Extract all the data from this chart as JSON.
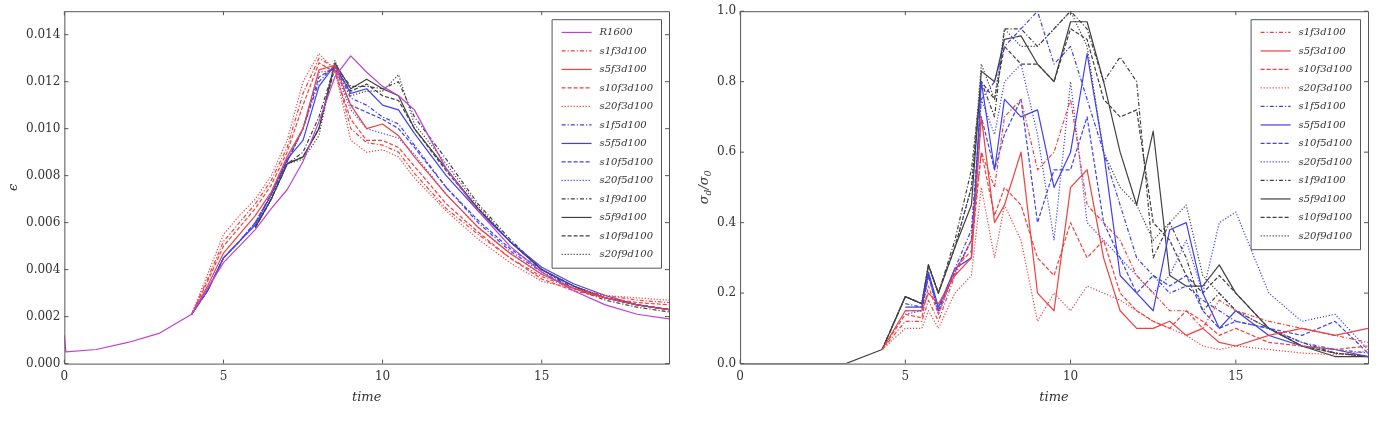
{
  "chart_data": [
    {
      "type": "line",
      "xlabel": "time",
      "ylabel": "ϵ",
      "legend": "top right",
      "grid": false,
      "marker": "none",
      "x": [
        0,
        0.05,
        1,
        2,
        3,
        4,
        4.5,
        5,
        5.5,
        6,
        6.5,
        7,
        7.5,
        8,
        8.5,
        9,
        9.5,
        10,
        10.5,
        11,
        12,
        13,
        14,
        15,
        16,
        17,
        18,
        19
      ],
      "xlim": [
        0,
        19
      ],
      "xticks": [
        0,
        5,
        10,
        15
      ],
      "ylim": [
        0,
        0.015
      ],
      "yticks": [
        {
          "value": 0,
          "label": "0.000"
        },
        {
          "value": 0.002,
          "label": "0.002"
        },
        {
          "value": 0.004,
          "label": "0.004"
        },
        {
          "value": 0.006,
          "label": "0.006"
        },
        {
          "value": 0.008,
          "label": "0.008"
        },
        {
          "value": 0.01,
          "label": "0.010"
        },
        {
          "value": 0.012,
          "label": "0.012"
        },
        {
          "value": 0.014,
          "label": "0.014"
        }
      ],
      "series": [
        {
          "name": "R1600",
          "color": "#c040d0",
          "line_style": "solid",
          "values": [
            0.0012,
            0.0005,
            0.0006,
            0.0009,
            0.0013,
            0.0021,
            0.0032,
            0.0043,
            0.005,
            0.0057,
            0.0066,
            0.0074,
            0.0086,
            0.0103,
            0.0122,
            0.0131,
            0.0124,
            0.0118,
            0.0114,
            0.0108,
            0.0083,
            0.0065,
            0.005,
            0.0039,
            0.0031,
            0.0025,
            0.0021,
            0.0019
          ]
        },
        {
          "name": "s1f3d100",
          "color": "#f04040",
          "line_style": "dashdot",
          "x": [
            4,
            4.5,
            5,
            5.5,
            6,
            6.5,
            7,
            7.5,
            8,
            8.5,
            9,
            9.5,
            10,
            10.5,
            11,
            12,
            13,
            14,
            15,
            16,
            17,
            18,
            19
          ],
          "values": [
            0.0021,
            0.0036,
            0.0052,
            0.006,
            0.0068,
            0.0078,
            0.0092,
            0.0115,
            0.013,
            0.0126,
            0.01,
            0.0094,
            0.0093,
            0.009,
            0.0081,
            0.0066,
            0.0055,
            0.0045,
            0.0037,
            0.0032,
            0.0029,
            0.0027,
            0.0026
          ]
        },
        {
          "name": "s5f3d100",
          "color": "#f04040",
          "line_style": "solid",
          "x": [
            4,
            4.5,
            5,
            5.5,
            6,
            6.5,
            7,
            7.5,
            8,
            8.5,
            9,
            9.5,
            10,
            10.5,
            11,
            12,
            13,
            14,
            15,
            16,
            17,
            18,
            19
          ],
          "values": [
            0.0021,
            0.0033,
            0.0047,
            0.0055,
            0.0063,
            0.0073,
            0.0088,
            0.01,
            0.0125,
            0.0127,
            0.011,
            0.01,
            0.0102,
            0.0097,
            0.0088,
            0.0072,
            0.0058,
            0.0047,
            0.0038,
            0.0032,
            0.0028,
            0.0025,
            0.0023
          ]
        },
        {
          "name": "s10f3d100",
          "color": "#f04040",
          "line_style": "dashed",
          "x": [
            4,
            4.5,
            5,
            5.5,
            6,
            6.5,
            7,
            7.5,
            8,
            8.5,
            9,
            9.5,
            10,
            10.5,
            11,
            12,
            13,
            14,
            15,
            16,
            17,
            18,
            19
          ],
          "values": [
            0.0021,
            0.0035,
            0.005,
            0.0058,
            0.0066,
            0.0076,
            0.009,
            0.011,
            0.0128,
            0.0124,
            0.0104,
            0.0095,
            0.0095,
            0.0092,
            0.0084,
            0.0068,
            0.0056,
            0.0045,
            0.0036,
            0.0031,
            0.0028,
            0.0026,
            0.0025
          ]
        },
        {
          "name": "s20f3d100",
          "color": "#f04040",
          "line_style": "dotted",
          "x": [
            4,
            4.5,
            5,
            5.5,
            6,
            6.5,
            7,
            7.5,
            8,
            8.5,
            9,
            9.5,
            10,
            10.5,
            11,
            12,
            13,
            14,
            15,
            16,
            17,
            18,
            19
          ],
          "values": [
            0.0021,
            0.0038,
            0.0055,
            0.0063,
            0.007,
            0.008,
            0.0095,
            0.012,
            0.0132,
            0.0125,
            0.0095,
            0.009,
            0.0091,
            0.0088,
            0.0079,
            0.0065,
            0.0053,
            0.0043,
            0.0035,
            0.0032,
            0.0029,
            0.0028,
            0.0027
          ]
        },
        {
          "name": "s1f5d100",
          "color": "#4040f0",
          "line_style": "dashdot",
          "x": [
            4,
            4.5,
            5,
            5.5,
            6,
            6.5,
            7,
            7.5,
            8,
            8.5,
            9,
            9.5,
            10,
            10.5,
            11,
            12,
            13,
            14,
            15,
            16,
            17,
            18,
            19
          ],
          "values": [
            0.0021,
            0.0031,
            0.0045,
            0.0052,
            0.006,
            0.0072,
            0.0086,
            0.01,
            0.012,
            0.0127,
            0.0113,
            0.011,
            0.0105,
            0.0102,
            0.0093,
            0.0075,
            0.006,
            0.0048,
            0.0039,
            0.0032,
            0.0028,
            0.0025,
            0.0023
          ]
        },
        {
          "name": "s5f5d100",
          "color": "#4040f0",
          "line_style": "solid",
          "x": [
            4,
            4.5,
            5,
            5.5,
            6,
            6.5,
            7,
            7.5,
            8,
            8.5,
            9,
            9.5,
            10,
            10.5,
            11,
            12,
            13,
            14,
            15,
            16,
            17,
            18,
            19
          ],
          "values": [
            0.0021,
            0.0031,
            0.0045,
            0.0052,
            0.0059,
            0.0072,
            0.0087,
            0.0095,
            0.0118,
            0.0127,
            0.0115,
            0.0117,
            0.011,
            0.0108,
            0.0098,
            0.008,
            0.0065,
            0.0052,
            0.0041,
            0.0034,
            0.0029,
            0.0025,
            0.0023
          ]
        },
        {
          "name": "s10f5d100",
          "color": "#4040f0",
          "line_style": "dashed",
          "x": [
            4,
            4.5,
            5,
            5.5,
            6,
            6.5,
            7,
            7.5,
            8,
            8.5,
            9,
            9.5,
            10,
            10.5,
            11,
            12,
            13,
            14,
            15,
            16,
            17,
            18,
            19
          ],
          "values": [
            0.0021,
            0.0031,
            0.0045,
            0.0052,
            0.006,
            0.0072,
            0.0086,
            0.01,
            0.0122,
            0.0126,
            0.011,
            0.0107,
            0.0104,
            0.01,
            0.0092,
            0.0075,
            0.0061,
            0.0049,
            0.004,
            0.0033,
            0.0028,
            0.0025,
            0.0023
          ]
        },
        {
          "name": "s20f5d100",
          "color": "#4040f0",
          "line_style": "dotted",
          "x": [
            4,
            4.5,
            5,
            5.5,
            6,
            6.5,
            7,
            7.5,
            8,
            8.5,
            9,
            9.5,
            10,
            10.5,
            11,
            12,
            13,
            14,
            15,
            16,
            17,
            18,
            19
          ],
          "values": [
            0.0021,
            0.0031,
            0.0045,
            0.0052,
            0.006,
            0.0072,
            0.0086,
            0.01,
            0.0124,
            0.0125,
            0.0108,
            0.01,
            0.0098,
            0.0096,
            0.0089,
            0.0072,
            0.0058,
            0.0047,
            0.0038,
            0.0032,
            0.0028,
            0.0025,
            0.0023
          ]
        },
        {
          "name": "s1f9d100",
          "color": "#404040",
          "line_style": "dashdot",
          "x": [
            6,
            6.5,
            7,
            7.5,
            8,
            8.5,
            9,
            9.5,
            10,
            10.5,
            11,
            12,
            13,
            14,
            15,
            16,
            17,
            18,
            19
          ],
          "values": [
            0.0058,
            0.007,
            0.0085,
            0.009,
            0.0105,
            0.0127,
            0.0118,
            0.0118,
            0.0117,
            0.012,
            0.0105,
            0.0087,
            0.0068,
            0.0053,
            0.004,
            0.0032,
            0.0027,
            0.0024,
            0.0022
          ]
        },
        {
          "name": "s5f9d100",
          "color": "#404040",
          "line_style": "solid",
          "x": [
            6,
            6.5,
            7,
            7.5,
            8,
            8.5,
            9,
            9.5,
            10,
            10.5,
            11,
            12,
            13,
            14,
            15,
            16,
            17,
            18,
            19
          ],
          "values": [
            0.0058,
            0.007,
            0.0085,
            0.0088,
            0.01,
            0.0128,
            0.0117,
            0.0121,
            0.0117,
            0.0114,
            0.01,
            0.0083,
            0.0066,
            0.0052,
            0.004,
            0.0033,
            0.0028,
            0.0025,
            0.0023
          ]
        },
        {
          "name": "s10f9d100",
          "color": "#404040",
          "line_style": "dashed",
          "x": [
            6,
            6.5,
            7,
            7.5,
            8,
            8.5,
            9,
            9.5,
            10,
            10.5,
            11,
            12,
            13,
            14,
            15,
            16,
            17,
            18,
            19
          ],
          "values": [
            0.0058,
            0.007,
            0.0085,
            0.0088,
            0.01,
            0.0126,
            0.0116,
            0.0119,
            0.0114,
            0.0112,
            0.01,
            0.0082,
            0.0066,
            0.0052,
            0.004,
            0.0033,
            0.0028,
            0.0025,
            0.0023
          ]
        },
        {
          "name": "s20f9d100",
          "color": "#404040",
          "line_style": "dotted",
          "x": [
            6,
            6.5,
            7,
            7.5,
            8,
            8.5,
            9,
            9.5,
            10,
            10.5,
            11,
            12,
            13,
            14,
            15,
            16,
            17,
            18,
            19
          ],
          "values": [
            0.0058,
            0.007,
            0.0085,
            0.0087,
            0.0097,
            0.0129,
            0.0114,
            0.0116,
            0.0116,
            0.0123,
            0.0102,
            0.0085,
            0.0067,
            0.0052,
            0.004,
            0.0033,
            0.0028,
            0.0025,
            0.0023
          ]
        }
      ]
    },
    {
      "type": "line",
      "xlabel": "time",
      "ylabel": "σ$_{d}$/σ$_{0}$",
      "legend": "top right",
      "grid": false,
      "marker": "none",
      "x": [
        4.3,
        5,
        5.5,
        5.7,
        6,
        6.5,
        7,
        7.3,
        7.7,
        8,
        8.5,
        9,
        9.5,
        10,
        10.5,
        11,
        11.5,
        12,
        12.5,
        13,
        13.5,
        14,
        14.5,
        15,
        16,
        17,
        18,
        19
      ],
      "xlim": [
        0,
        19
      ],
      "xticks": [
        0,
        5,
        10,
        15
      ],
      "ylim": [
        0,
        1
      ],
      "yticks": [
        {
          "value": 0,
          "label": "0.0"
        },
        {
          "value": 0.2,
          "label": "0.2"
        },
        {
          "value": 0.4,
          "label": "0.4"
        },
        {
          "value": 0.6,
          "label": "0.6"
        },
        {
          "value": 0.8,
          "label": "0.8"
        },
        {
          "value": 1,
          "label": "1.0"
        }
      ],
      "series": [
        {
          "name": "s1f3d100",
          "color": "#f04040",
          "line_style": "dashdot",
          "values": [
            0.04,
            0.12,
            0.12,
            0.18,
            0.12,
            0.25,
            0.35,
            0.6,
            0.5,
            0.7,
            0.75,
            0.55,
            0.6,
            0.75,
            0.45,
            0.4,
            0.35,
            0.25,
            0.2,
            0.15,
            0.15,
            0.1,
            0.18,
            0.15,
            0.12,
            0.1,
            0.08,
            0.06
          ]
        },
        {
          "name": "s5f3d100",
          "color": "#f04040",
          "line_style": "solid",
          "values": [
            0.04,
            0.15,
            0.15,
            0.2,
            0.17,
            0.25,
            0.3,
            0.7,
            0.4,
            0.45,
            0.6,
            0.2,
            0.15,
            0.5,
            0.55,
            0.3,
            0.15,
            0.1,
            0.1,
            0.12,
            0.08,
            0.1,
            0.06,
            0.05,
            0.08,
            0.1,
            0.08,
            0.1
          ]
        },
        {
          "name": "s10f3d100",
          "color": "#f04040",
          "line_style": "dashed",
          "values": [
            0.04,
            0.14,
            0.13,
            0.22,
            0.14,
            0.27,
            0.32,
            0.6,
            0.42,
            0.5,
            0.45,
            0.3,
            0.25,
            0.4,
            0.3,
            0.35,
            0.2,
            0.15,
            0.12,
            0.1,
            0.15,
            0.12,
            0.08,
            0.1,
            0.06,
            0.05,
            0.04,
            0.05
          ]
        },
        {
          "name": "s20f3d100",
          "color": "#f04040",
          "line_style": "dotted",
          "values": [
            0.04,
            0.1,
            0.1,
            0.15,
            0.1,
            0.2,
            0.25,
            0.5,
            0.3,
            0.45,
            0.35,
            0.12,
            0.2,
            0.15,
            0.22,
            0.2,
            0.18,
            0.15,
            0.12,
            0.1,
            0.08,
            0.05,
            0.04,
            0.05,
            0.04,
            0.03,
            0.025,
            0.035
          ]
        },
        {
          "name": "s1f5d100",
          "color": "#4040f0",
          "line_style": "dashdot",
          "x": [
            5,
            5.5,
            5.7,
            6,
            6.5,
            7,
            7.3,
            7.7,
            8,
            8.5,
            9,
            9.5,
            10,
            10.5,
            11,
            11.5,
            12,
            12.5,
            13,
            13.5,
            14,
            14.5,
            15,
            16,
            17,
            18,
            19
          ],
          "values": [
            0.17,
            0.16,
            0.25,
            0.15,
            0.27,
            0.38,
            0.75,
            0.8,
            0.9,
            0.95,
            1,
            0.85,
            0.9,
            0.75,
            0.6,
            0.45,
            0.3,
            0.25,
            0.2,
            0.22,
            0.18,
            0.15,
            0.12,
            0.1,
            0.06,
            0.04,
            0.03
          ]
        },
        {
          "name": "s5f5d100",
          "color": "#4040f0",
          "line_style": "solid",
          "x": [
            5,
            5.5,
            5.7,
            6,
            6.5,
            7,
            7.3,
            7.7,
            8,
            8.5,
            9,
            9.5,
            10,
            10.5,
            11,
            11.5,
            12,
            12.5,
            13,
            13.5,
            14,
            14.5,
            15,
            16,
            17,
            18,
            19
          ],
          "values": [
            0.16,
            0.16,
            0.26,
            0.16,
            0.27,
            0.3,
            0.8,
            0.55,
            0.75,
            0.7,
            0.72,
            0.5,
            0.6,
            0.88,
            0.6,
            0.25,
            0.2,
            0.15,
            0.38,
            0.4,
            0.2,
            0.1,
            0.15,
            0.08,
            0.05,
            0.04,
            0.02
          ]
        },
        {
          "name": "s10f5d100",
          "color": "#4040f0",
          "line_style": "dashed",
          "x": [
            5,
            5.5,
            5.7,
            6,
            6.5,
            7,
            7.3,
            7.7,
            8,
            8.5,
            9,
            9.5,
            10,
            10.5,
            11,
            11.5,
            12,
            12.5,
            13,
            13.5,
            14,
            14.5,
            15,
            16,
            17,
            18,
            19
          ],
          "values": [
            0.15,
            0.15,
            0.25,
            0.15,
            0.26,
            0.35,
            0.7,
            0.55,
            0.65,
            0.75,
            0.4,
            0.55,
            0.55,
            0.7,
            0.4,
            0.3,
            0.2,
            0.25,
            0.22,
            0.25,
            0.15,
            0.1,
            0.12,
            0.1,
            0.08,
            0.12,
            0.03
          ]
        },
        {
          "name": "s20f5d100",
          "color": "#4040f0",
          "line_style": "dotted",
          "x": [
            5,
            5.5,
            5.7,
            6,
            6.5,
            7,
            7.3,
            7.7,
            8,
            8.5,
            9,
            9.5,
            10,
            10.5,
            11,
            11.5,
            12,
            12.5,
            13,
            13.5,
            14,
            14.5,
            15,
            16,
            17,
            18,
            19
          ],
          "values": [
            0.14,
            0.15,
            0.25,
            0.14,
            0.26,
            0.35,
            0.75,
            0.65,
            0.8,
            0.85,
            0.65,
            0.35,
            0.8,
            0.4,
            0.35,
            0.3,
            0.25,
            0.2,
            0.25,
            0.35,
            0.2,
            0.4,
            0.43,
            0.2,
            0.12,
            0.14,
            0.04
          ]
        },
        {
          "name": "s1f9d100",
          "color": "#404040",
          "line_style": "dashdot",
          "values": [
            0.04,
            0.19,
            0.17,
            0.28,
            0.2,
            0.35,
            0.55,
            0.8,
            0.7,
            0.95,
            0.95,
            0.9,
            0.95,
            1,
            0.95,
            0.8,
            0.87,
            0.8,
            0.3,
            0.4,
            0.3,
            0.15,
            0.2,
            0.15,
            0.1,
            0.06,
            0.03,
            0.02
          ]
        },
        {
          "name": "s5f9d100",
          "color": "#404040",
          "line_style": "solid",
          "x": [
            0,
            3.2,
            4.3,
            5,
            5.5,
            5.7,
            6,
            6.5,
            7,
            7.3,
            7.7,
            8,
            8.5,
            9,
            9.5,
            10,
            10.5,
            11,
            11.5,
            12,
            12.5,
            13,
            13.5,
            14,
            14.5,
            15,
            16,
            17,
            18,
            19
          ],
          "values": [
            0,
            0,
            0.04,
            0.19,
            0.17,
            0.28,
            0.2,
            0.33,
            0.45,
            0.83,
            0.8,
            0.92,
            0.93,
            0.85,
            0.8,
            0.97,
            0.97,
            0.8,
            0.6,
            0.45,
            0.66,
            0.25,
            0.22,
            0.22,
            0.28,
            0.2,
            0.1,
            0.05,
            0.02,
            0.02
          ]
        },
        {
          "name": "s10f9d100",
          "color": "#404040",
          "line_style": "dashed",
          "values": [
            0.04,
            0.19,
            0.17,
            0.28,
            0.2,
            0.33,
            0.5,
            0.8,
            0.75,
            0.9,
            0.85,
            0.85,
            0.8,
            0.95,
            0.92,
            0.75,
            0.7,
            0.72,
            0.4,
            0.35,
            0.25,
            0.2,
            0.25,
            0.2,
            0.1,
            0.05,
            0.03,
            0.02
          ]
        },
        {
          "name": "s20f9d100",
          "color": "#404040",
          "line_style": "dotted",
          "values": [
            0.04,
            0.19,
            0.17,
            0.28,
            0.2,
            0.33,
            0.5,
            0.85,
            0.75,
            0.95,
            0.9,
            0.9,
            0.95,
            1,
            0.9,
            0.6,
            0.5,
            0.45,
            0.35,
            0.4,
            0.45,
            0.25,
            0.2,
            0.15,
            0.1,
            0.05,
            0.03,
            0.02
          ]
        }
      ]
    }
  ]
}
